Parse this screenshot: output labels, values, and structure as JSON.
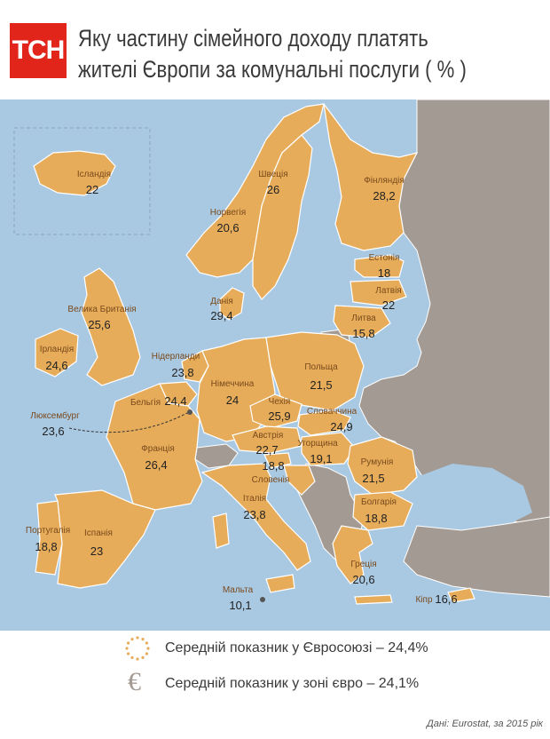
{
  "header": {
    "logo_text": "ТСН",
    "title_line1": "Яку частину сімейного доходу платять",
    "title_line2": "жителі  Європи за комунальні послуги ( % )"
  },
  "countries": [
    {
      "id": "iceland",
      "name": "Ісландія",
      "value": "22"
    },
    {
      "id": "norway",
      "name": "Норвегія",
      "value": "20,6"
    },
    {
      "id": "sweden",
      "name": "Швеція",
      "value": "26"
    },
    {
      "id": "finland",
      "name": "Фінляндія",
      "value": "28,2"
    },
    {
      "id": "estonia",
      "name": "Естонія",
      "value": "18"
    },
    {
      "id": "latvia",
      "name": "Латвія",
      "value": "22"
    },
    {
      "id": "lithuania",
      "name": "Литва",
      "value": "15,8"
    },
    {
      "id": "denmark",
      "name": "Данія",
      "value": "29,4"
    },
    {
      "id": "uk",
      "name": "Велика Британія",
      "value": "25,6"
    },
    {
      "id": "ireland",
      "name": "Ірландія",
      "value": "24,6"
    },
    {
      "id": "netherlands",
      "name": "Нідерланди",
      "value": "23,8"
    },
    {
      "id": "belgium",
      "name": "Бельгія",
      "value": "24,4"
    },
    {
      "id": "luxembourg",
      "name": "Люксембург",
      "value": "23,6"
    },
    {
      "id": "germany",
      "name": "Німеччина",
      "value": "24"
    },
    {
      "id": "poland",
      "name": "Польща",
      "value": "21,5"
    },
    {
      "id": "czechia",
      "name": "Чехія",
      "value": "25,9"
    },
    {
      "id": "slovakia",
      "name": "Словаччина",
      "value": "24,9"
    },
    {
      "id": "austria",
      "name": "Австрія",
      "value": "22,7"
    },
    {
      "id": "hungary",
      "name": "Угорщина",
      "value": "19,1"
    },
    {
      "id": "slovenia",
      "name": "Словенія",
      "value": "18,8"
    },
    {
      "id": "france",
      "name": "Франція",
      "value": "26,4"
    },
    {
      "id": "romania",
      "name": "Румунія",
      "value": "21,5"
    },
    {
      "id": "bulgaria",
      "name": "Болгарія",
      "value": "18,8"
    },
    {
      "id": "italy",
      "name": "Італія",
      "value": "23,8"
    },
    {
      "id": "portugal",
      "name": "Португалія",
      "value": "18,8"
    },
    {
      "id": "spain",
      "name": "Іспанія",
      "value": "23"
    },
    {
      "id": "greece",
      "name": "Греція",
      "value": "20,6"
    },
    {
      "id": "malta",
      "name": "Мальта",
      "value": "10,1"
    },
    {
      "id": "cyprus",
      "name": "Кіпр",
      "value": "16,6"
    }
  ],
  "legend": {
    "eu_text": "Середній показник у Євросоюзі – 24,4%",
    "euro_text": "Середній показник у зоні євро – 24,1%",
    "euro_symbol": "€"
  },
  "source": "Дані: Eurostat, за 2015 рік",
  "colors": {
    "sea": "#a9c8e2",
    "eu_land": "#e6ac5a",
    "other_land": "#a39a93",
    "border": "#ffffff",
    "logo": "#e1251b"
  }
}
